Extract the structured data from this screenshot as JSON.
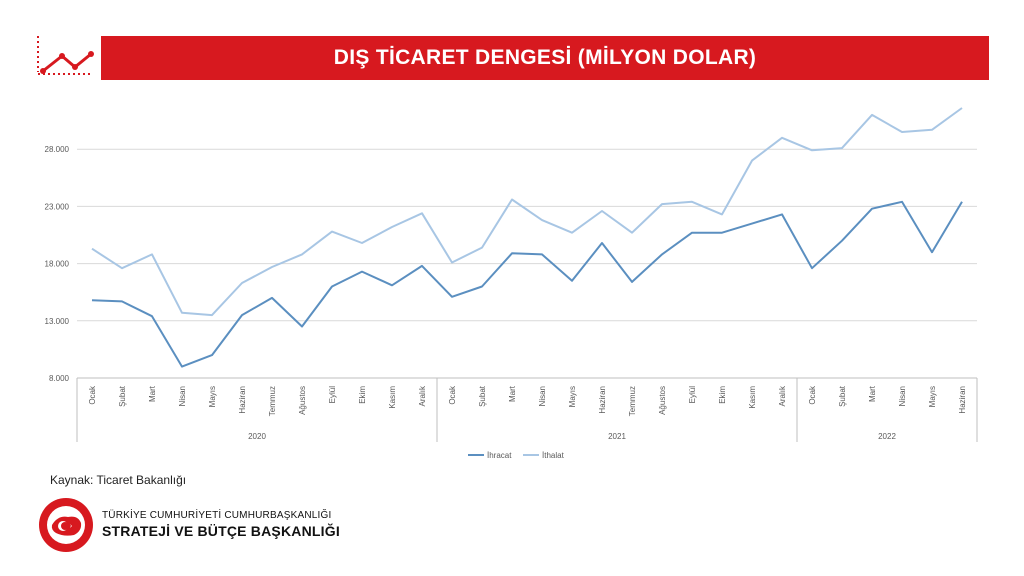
{
  "title": "DIŞ TİCARET DENGESİ (MİLYON DOLAR)",
  "source": "Kaynak: Ticaret Bakanlığı",
  "organization": {
    "line1": "TÜRKİYE CUMHURİYETİ CUMHURBAŞKANLIĞI",
    "line2": "STRATEJİ VE BÜTÇE BAŞKANLIĞI",
    "seal_text": "T.C. CUMHURBAŞKANLIĞI STRATEJİ VE BÜTÇE BAŞKANLIĞI"
  },
  "colors": {
    "title_bar": "#d7191f",
    "exports": "#5b8fc0",
    "imports": "#a8c6e4",
    "grid": "#d9d9d9",
    "axis_text": "#595959",
    "corner_icon": "#d7191f"
  },
  "icons": [
    "trend-line-icon",
    "seal-icon"
  ],
  "chart_data": {
    "type": "line",
    "title": "DIŞ TİCARET DENGESİ (MİLYON DOLAR)",
    "categories": [
      "Ocak",
      "Şubat",
      "Mart",
      "Nisan",
      "Mayıs",
      "Haziran",
      "Temmuz",
      "Ağustos",
      "Eylül",
      "Ekim",
      "Kasım",
      "Aralık",
      "Ocak",
      "Şubat",
      "Mart",
      "Nisan",
      "Mayıs",
      "Haziran",
      "Temmuz",
      "Ağustos",
      "Eylül",
      "Ekim",
      "Kasım",
      "Aralık",
      "Ocak",
      "Şubat",
      "Mart",
      "Nisan",
      "Mayıs",
      "Haziran"
    ],
    "groups": [
      {
        "label": "2020",
        "count": 12
      },
      {
        "label": "2021",
        "count": 12
      },
      {
        "label": "2022",
        "count": 6
      }
    ],
    "series": [
      {
        "name": "İhracat",
        "values": [
          14.8,
          14.7,
          13.4,
          9.0,
          10.0,
          13.5,
          15.0,
          12.5,
          16.0,
          17.3,
          16.1,
          17.8,
          15.1,
          16.0,
          18.9,
          18.8,
          16.5,
          19.8,
          16.4,
          18.8,
          20.7,
          20.7,
          21.5,
          22.3,
          17.6,
          20.0,
          22.8,
          23.4,
          19.0,
          23.4
        ]
      },
      {
        "name": "İthalat",
        "values": [
          19.3,
          17.6,
          18.8,
          13.7,
          13.5,
          16.3,
          17.7,
          18.8,
          20.8,
          19.8,
          21.2,
          22.4,
          18.1,
          19.4,
          23.6,
          21.8,
          20.7,
          22.6,
          20.7,
          23.2,
          23.4,
          22.3,
          27.0,
          29.0,
          27.9,
          28.1,
          31.0,
          29.5,
          29.7,
          31.6
        ]
      }
    ],
    "yticks": [
      "8.000",
      "13.000",
      "18.000",
      "23.000",
      "28.000"
    ],
    "ytick_values": [
      8,
      13,
      18,
      23,
      28
    ],
    "ylim": [
      8,
      33
    ],
    "grid": true,
    "legend": "bottom"
  }
}
